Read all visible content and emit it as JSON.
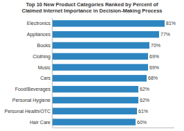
{
  "chart_data": {
    "type": "bar",
    "orientation": "horizontal",
    "title": "Top 10 New Product Categories Ranked by Percent of\nClaimed Internet Importance in Decision-Making Process",
    "categories": [
      "Hair Care",
      "Personal Health/OTC",
      "Personal Hygiene",
      "Food/Beverages",
      "Cars",
      "Music",
      "Clothing",
      "Books",
      "Appliances",
      "Electronics"
    ],
    "values": [
      60,
      61,
      62,
      62,
      68,
      69,
      69,
      70,
      77,
      81
    ],
    "value_labels": [
      "60%",
      "61%",
      "62%",
      "62%",
      "68%",
      "69%",
      "69%",
      "70%",
      "77%",
      "81%"
    ],
    "data_labels": true,
    "color": "#2E86C1",
    "xlim": [
      0,
      88
    ],
    "tick_labels": "y"
  }
}
